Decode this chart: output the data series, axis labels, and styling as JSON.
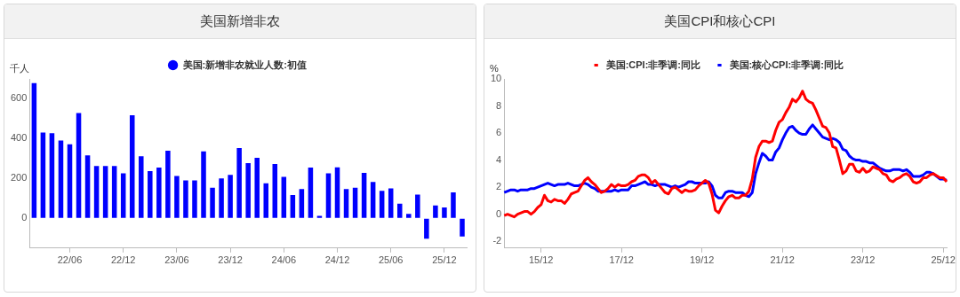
{
  "chart_data": [
    {
      "type": "bar",
      "title": "美国新增非农",
      "ylabel": "千人",
      "categories": [
        null,
        null,
        null,
        null,
        "22/06",
        null,
        null,
        null,
        null,
        null,
        "22/12",
        null,
        null,
        null,
        null,
        null,
        "23/06",
        null,
        null,
        null,
        null,
        null,
        "23/12",
        null,
        null,
        null,
        null,
        null,
        "24/06",
        null,
        null,
        null,
        null,
        null,
        "24/12",
        null,
        null,
        null,
        null,
        null,
        "25/06",
        null,
        null,
        null,
        null,
        null,
        "25/12",
        null,
        null
      ],
      "series": [
        {
          "name": "美国:新增非农就业人数:初值",
          "color": "#0000ff",
          "values": [
            679,
            430,
            427,
            390,
            371,
            529,
            316,
            262,
            262,
            262,
            225,
            517,
            311,
            237,
            254,
            339,
            212,
            190,
            190,
            336,
            153,
            200,
            218,
            353,
            277,
            303,
            175,
            272,
            208,
            116,
            146,
            254,
            12,
            225,
            256,
            146,
            153,
            228,
            182,
            138,
            150,
            73,
            22,
            119,
            -103,
            64,
            54,
            130,
            -92
          ]
        }
      ],
      "ylim": [
        -150,
        700
      ],
      "yticks": [
        0,
        200,
        400,
        600
      ],
      "grid": false,
      "legend": "top",
      "marker": "circle"
    },
    {
      "type": "line",
      "title": "美国CPI和核心CPI",
      "ylabel": "%",
      "categories": [
        null,
        null,
        null,
        null,
        null,
        null,
        null,
        null,
        null,
        null,
        null,
        "15/12",
        null,
        null,
        null,
        null,
        null,
        null,
        null,
        null,
        null,
        null,
        null,
        null,
        null,
        null,
        null,
        null,
        null,
        null,
        null,
        null,
        null,
        null,
        null,
        "17/12",
        null,
        null,
        null,
        null,
        null,
        null,
        null,
        null,
        null,
        null,
        null,
        null,
        null,
        null,
        null,
        null,
        null,
        null,
        null,
        null,
        null,
        null,
        null,
        "19/12",
        null,
        null,
        null,
        null,
        null,
        null,
        null,
        null,
        null,
        null,
        null,
        null,
        null,
        null,
        null,
        null,
        null,
        null,
        null,
        null,
        null,
        null,
        null,
        "21/12",
        null,
        null,
        null,
        null,
        null,
        null,
        null,
        null,
        null,
        null,
        null,
        null,
        null,
        null,
        null,
        null,
        null,
        null,
        null,
        null,
        null,
        null,
        null,
        "23/12",
        null,
        null,
        null,
        null,
        null,
        null,
        null,
        null,
        null,
        null,
        null,
        null,
        null,
        null,
        null,
        null,
        null,
        null,
        null,
        null,
        null,
        null,
        null,
        "25/12",
        null
      ],
      "series": [
        {
          "name": "美国:CPI:非季调:同比",
          "color": "#ff0000",
          "values": [
            -0.1,
            0,
            -0.1,
            -0.2,
            0,
            0.1,
            0.2,
            0.2,
            0,
            0.2,
            0.5,
            0.7,
            1.4,
            1.0,
            0.9,
            1.1,
            1.0,
            1.0,
            0.8,
            1.1,
            1.5,
            1.6,
            1.7,
            2.1,
            2.5,
            2.7,
            2.4,
            2.2,
            1.9,
            1.6,
            1.7,
            1.9,
            2.2,
            2.0,
            2.2,
            2.1,
            2.1,
            2.2,
            2.4,
            2.5,
            2.8,
            2.9,
            2.9,
            2.7,
            2.3,
            2.5,
            2.2,
            1.9,
            1.6,
            1.5,
            1.9,
            2.0,
            1.8,
            1.6,
            1.8,
            1.7,
            1.7,
            1.8,
            2.1,
            2.3,
            2.5,
            2.3,
            1.5,
            0.3,
            0.1,
            0.6,
            1.0,
            1.3,
            1.4,
            1.2,
            1.2,
            1.4,
            1.4,
            1.7,
            2.6,
            4.2,
            5.0,
            5.4,
            5.4,
            5.3,
            5.4,
            6.2,
            6.8,
            7.0,
            7.5,
            7.9,
            8.5,
            8.3,
            8.6,
            9.1,
            8.5,
            8.3,
            8.2,
            7.7,
            7.1,
            6.5,
            6.4,
            6.0,
            5.0,
            4.9,
            4.0,
            3.0,
            3.2,
            3.7,
            3.7,
            3.2,
            3.1,
            3.4,
            3.1,
            3.2,
            3.5,
            3.4,
            3.3,
            3.0,
            2.9,
            2.5,
            2.4,
            2.6,
            2.7,
            2.9,
            3.0,
            2.8,
            2.4,
            2.3,
            2.4,
            2.7,
            2.7,
            2.9,
            3.0,
            null,
            2.7,
            2.7,
            2.4
          ]
        },
        {
          "name": "美国:核心CPI:非季调:同比",
          "color": "#0000ff",
          "values": [
            1.6,
            1.7,
            1.8,
            1.8,
            1.7,
            1.8,
            1.8,
            1.8,
            1.9,
            1.9,
            2.0,
            2.1,
            2.2,
            2.3,
            2.2,
            2.1,
            2.2,
            2.2,
            2.2,
            2.3,
            2.2,
            2.1,
            2.1,
            2.2,
            2.3,
            2.2,
            2.0,
            1.9,
            1.7,
            1.7,
            1.7,
            1.7,
            1.7,
            1.8,
            1.7,
            1.8,
            1.8,
            1.8,
            2.1,
            2.1,
            2.2,
            2.3,
            2.4,
            2.2,
            2.2,
            2.1,
            2.2,
            2.2,
            2.2,
            2.1,
            2.0,
            2.1,
            2.0,
            2.1,
            2.2,
            2.4,
            2.4,
            2.3,
            2.3,
            2.3,
            2.3,
            2.4,
            2.1,
            1.4,
            1.2,
            1.2,
            1.6,
            1.7,
            1.7,
            1.6,
            1.6,
            1.6,
            1.4,
            1.3,
            1.6,
            3.0,
            3.8,
            4.5,
            4.3,
            4.0,
            4.0,
            4.6,
            4.9,
            5.5,
            6.0,
            6.4,
            6.5,
            6.2,
            6.0,
            5.9,
            5.9,
            6.3,
            6.6,
            6.3,
            6.0,
            5.7,
            5.6,
            5.5,
            5.6,
            5.5,
            5.3,
            4.8,
            4.7,
            4.3,
            4.1,
            4.0,
            4.0,
            3.9,
            3.9,
            3.8,
            3.8,
            3.6,
            3.4,
            3.3,
            3.2,
            3.2,
            3.3,
            3.3,
            3.3,
            3.2,
            3.3,
            3.1,
            2.8,
            2.8,
            2.8,
            2.9,
            3.1,
            3.1,
            3.0,
            null,
            2.6,
            2.6,
            2.5
          ]
        }
      ],
      "ylim": [
        -2.5,
        10
      ],
      "yticks": [
        -2,
        0,
        2,
        4,
        6,
        8,
        10
      ],
      "grid": false,
      "legend": "top",
      "marker": "none",
      "line_style": "solid"
    }
  ]
}
